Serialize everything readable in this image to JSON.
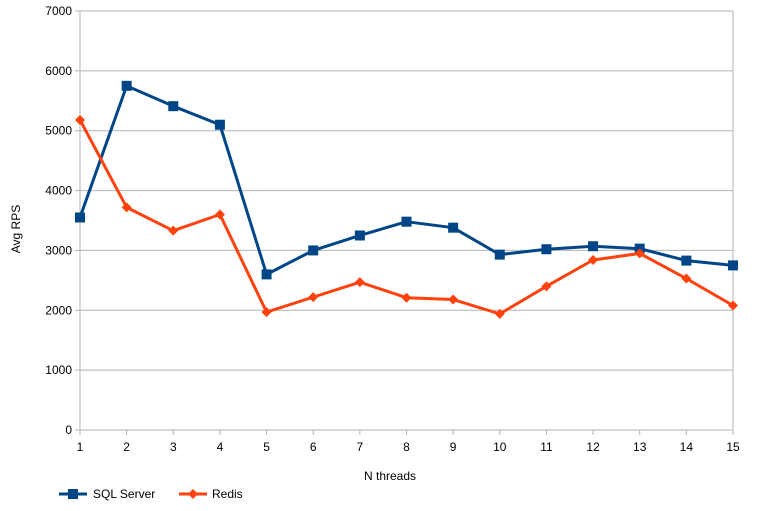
{
  "chart_data": {
    "type": "line",
    "xlabel": "N threads",
    "ylabel": "Avg RPS",
    "x": [
      1,
      2,
      3,
      4,
      5,
      6,
      7,
      8,
      9,
      10,
      11,
      12,
      13,
      14,
      15
    ],
    "ylim": [
      0,
      7000
    ],
    "yticks": [
      0,
      1000,
      2000,
      3000,
      4000,
      5000,
      6000,
      7000
    ],
    "grid": "horizontal",
    "legend_position": "bottom-left",
    "series": [
      {
        "name": "SQL Server",
        "color": "#004586",
        "marker": "square",
        "values": [
          3550,
          5750,
          5410,
          5100,
          2600,
          3000,
          3250,
          3480,
          3380,
          2930,
          3020,
          3070,
          3030,
          2830,
          2750
        ]
      },
      {
        "name": "Redis",
        "color": "#ff420e",
        "marker": "diamond",
        "values": [
          5180,
          3720,
          3330,
          3600,
          1970,
          2220,
          2470,
          2210,
          2180,
          1940,
          2400,
          2840,
          2950,
          2530,
          2080
        ]
      }
    ]
  }
}
